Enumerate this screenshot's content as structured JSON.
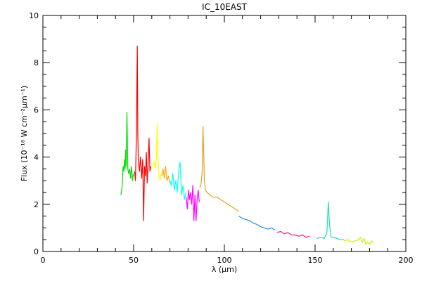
{
  "chart_data": {
    "type": "line",
    "title": "IC_10EAST",
    "xlabel": "λ (μm)",
    "ylabel": "Flux (10⁻¹⁸ W cm⁻²μm⁻¹)",
    "xlim": [
      0,
      200
    ],
    "ylim": [
      0,
      10
    ],
    "xticks": [
      0,
      50,
      100,
      150,
      200
    ],
    "yticks": [
      0,
      2,
      4,
      6,
      8,
      10
    ],
    "grid": false,
    "series": [
      {
        "color": "#00e000",
        "x": [
          43.0,
          43.6,
          44.2,
          44.6,
          45.0,
          45.3,
          45.6,
          45.9,
          46.3,
          46.8,
          47.3,
          47.8,
          48.3,
          48.8,
          49.4,
          49.9
        ],
        "y": [
          2.4,
          2.7,
          3.6,
          3.4,
          3.9,
          3.5,
          4.3,
          3.6,
          5.9,
          3.5,
          3.3,
          3.5,
          3.1,
          3.6,
          3.0,
          3.3
        ]
      },
      {
        "color": "#ff0000",
        "x": [
          50.5,
          51.0,
          51.5,
          51.8,
          52.0,
          52.3,
          52.6,
          53.2,
          53.8,
          54.4,
          55.0,
          55.5,
          56.0,
          56.5,
          57.0,
          57.5,
          58.0,
          58.5,
          59.0,
          59.5
        ],
        "y": [
          3.4,
          3.0,
          4.9,
          7.0,
          8.7,
          5.0,
          3.8,
          3.4,
          4.0,
          3.1,
          3.9,
          1.3,
          3.6,
          3.2,
          4.2,
          2.9,
          3.7,
          4.8,
          3.4,
          3.6
        ]
      },
      {
        "color": "#ffff00",
        "x": [
          60.5,
          61.2,
          62.0,
          62.6,
          63.0,
          63.4,
          64.0,
          64.6,
          65.2
        ],
        "y": [
          3.6,
          3.8,
          3.5,
          4.1,
          5.4,
          4.0,
          3.2,
          3.0,
          3.3
        ]
      },
      {
        "color": "#ffa500",
        "x": [
          65.5,
          66.2,
          66.9,
          67.6,
          68.4,
          69.2,
          70.0
        ],
        "y": [
          3.2,
          3.5,
          3.1,
          3.6,
          3.0,
          3.2,
          2.9
        ]
      },
      {
        "color": "#00ffff",
        "x": [
          70.0,
          70.8,
          71.6,
          72.4,
          73.2,
          74.0,
          74.8,
          75.6,
          76.4,
          77.2,
          78.0,
          78.8
        ],
        "y": [
          3.0,
          2.8,
          3.3,
          2.6,
          3.0,
          2.5,
          3.4,
          3.8,
          2.4,
          2.8,
          2.2,
          2.5
        ]
      },
      {
        "color": "#ff00ff",
        "x": [
          79.0,
          79.6,
          80.2,
          80.8,
          81.4,
          82.0,
          82.6,
          83.2,
          83.8,
          84.4,
          85.0,
          85.6,
          86.2
        ],
        "y": [
          2.3,
          1.8,
          2.6,
          2.2,
          2.5,
          2.0,
          2.8,
          1.3,
          2.4,
          1.3,
          2.2,
          2.6,
          2.1
        ]
      },
      {
        "color": "#e6a020",
        "x": [
          86.5,
          87.2,
          87.8,
          88.2,
          88.6,
          89.0,
          89.6,
          90.4,
          92.0,
          94.0,
          96.0,
          98.0,
          100.0,
          102.0,
          104.0,
          106.0,
          108.0
        ],
        "y": [
          2.7,
          2.9,
          3.4,
          5.3,
          4.2,
          3.0,
          2.6,
          2.5,
          2.4,
          2.3,
          2.3,
          2.2,
          2.1,
          2.0,
          1.9,
          1.8,
          1.7
        ]
      },
      {
        "color": "#1e8fe0",
        "x": [
          108.0,
          110.0,
          112.0,
          114.0,
          116.0,
          118.0,
          120.0,
          122.0,
          124.0,
          126.0,
          128.0
        ],
        "y": [
          1.5,
          1.4,
          1.35,
          1.3,
          1.2,
          1.15,
          1.05,
          1.0,
          0.95,
          1.0,
          0.9
        ]
      },
      {
        "color": "#ff1493",
        "x": [
          129.0,
          131.0,
          133.0,
          135.0,
          137.0,
          139.0,
          141.0,
          143.0,
          145.0,
          147.0
        ],
        "y": [
          0.8,
          0.85,
          0.75,
          0.8,
          0.7,
          0.7,
          0.65,
          0.7,
          0.6,
          0.65
        ]
      },
      {
        "color": "#20e0b0",
        "x": [
          151.0,
          153.0,
          155.0,
          156.5,
          157.3,
          158.0,
          158.8,
          160.0,
          162.0,
          164.0,
          166.0
        ],
        "y": [
          0.55,
          0.6,
          0.55,
          0.8,
          2.1,
          1.1,
          0.6,
          0.6,
          0.55,
          0.5,
          0.5
        ]
      },
      {
        "color": "#ccee00",
        "x": [
          166.0,
          168.0,
          170.0,
          172.0,
          174.0,
          175.0,
          176.0,
          177.0,
          178.0,
          179.0,
          180.0,
          181.0,
          182.0
        ],
        "y": [
          0.45,
          0.5,
          0.4,
          0.45,
          0.5,
          0.6,
          0.4,
          0.55,
          0.3,
          0.4,
          0.3,
          0.45,
          0.35
        ]
      }
    ]
  }
}
